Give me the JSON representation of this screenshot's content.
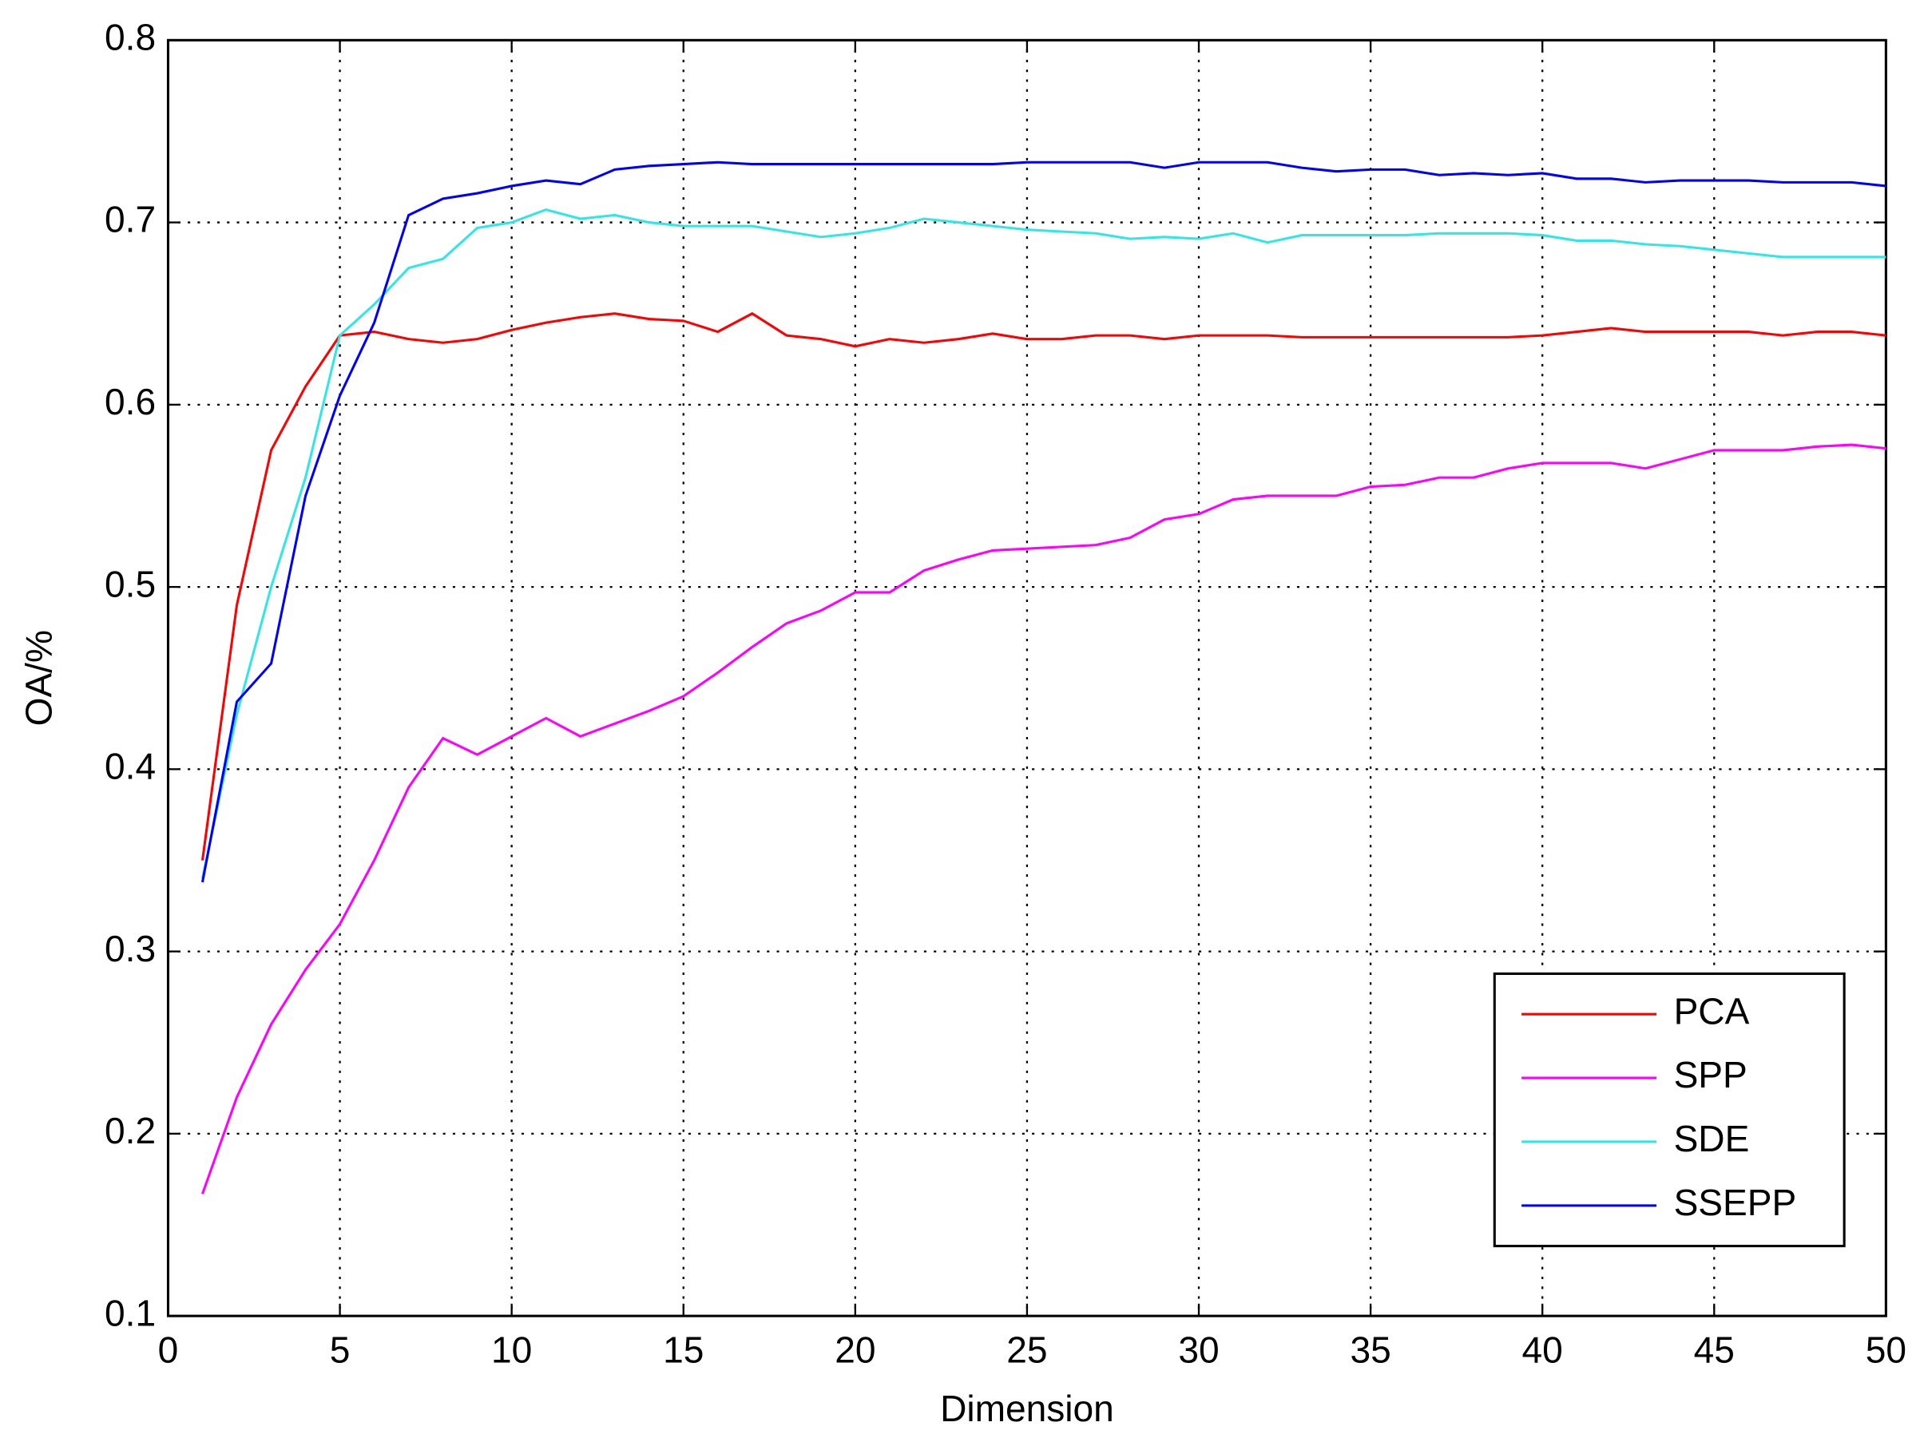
{
  "chart_data": {
    "type": "line",
    "x_label": "Dimension",
    "y_label": "OA/%",
    "x": [
      1,
      2,
      3,
      4,
      5,
      6,
      7,
      8,
      9,
      10,
      11,
      12,
      13,
      14,
      15,
      16,
      17,
      18,
      19,
      20,
      21,
      22,
      23,
      24,
      25,
      26,
      27,
      28,
      29,
      30,
      31,
      32,
      33,
      34,
      35,
      36,
      37,
      38,
      39,
      40,
      41,
      42,
      43,
      44,
      45,
      46,
      47,
      48,
      49,
      50
    ],
    "series": [
      {
        "name": "PCA",
        "color": "#ff0000",
        "values": [
          0.35,
          0.49,
          0.575,
          0.61,
          0.638,
          0.64,
          0.636,
          0.634,
          0.636,
          0.641,
          0.645,
          0.648,
          0.65,
          0.647,
          0.646,
          0.64,
          0.65,
          0.638,
          0.636,
          0.632,
          0.636,
          0.634,
          0.636,
          0.639,
          0.636,
          0.636,
          0.638,
          0.638,
          0.636,
          0.638,
          0.638,
          0.638,
          0.637,
          0.637,
          0.637,
          0.637,
          0.637,
          0.637,
          0.637,
          0.638,
          0.64,
          0.642,
          0.64,
          0.64,
          0.64,
          0.64,
          0.638,
          0.64,
          0.64,
          0.638
        ]
      },
      {
        "name": "SPP",
        "color": "#ff00ff",
        "values": [
          0.167,
          0.22,
          0.26,
          0.29,
          0.315,
          0.35,
          0.39,
          0.417,
          0.408,
          0.418,
          0.428,
          0.418,
          0.425,
          0.432,
          0.44,
          0.453,
          0.467,
          0.48,
          0.487,
          0.497,
          0.497,
          0.509,
          0.515,
          0.52,
          0.521,
          0.522,
          0.523,
          0.527,
          0.537,
          0.54,
          0.548,
          0.55,
          0.55,
          0.55,
          0.555,
          0.556,
          0.56,
          0.56,
          0.565,
          0.568,
          0.568,
          0.568,
          0.565,
          0.57,
          0.575,
          0.575,
          0.575,
          0.577,
          0.578,
          0.576
        ]
      },
      {
        "name": "SDE",
        "color": "#33e6e6",
        "values": [
          0.34,
          0.43,
          0.5,
          0.56,
          0.638,
          0.655,
          0.675,
          0.68,
          0.697,
          0.7,
          0.707,
          0.702,
          0.704,
          0.7,
          0.698,
          0.698,
          0.698,
          0.695,
          0.692,
          0.694,
          0.697,
          0.702,
          0.7,
          0.698,
          0.696,
          0.695,
          0.694,
          0.691,
          0.692,
          0.691,
          0.694,
          0.689,
          0.693,
          0.693,
          0.693,
          0.693,
          0.694,
          0.694,
          0.694,
          0.693,
          0.69,
          0.69,
          0.688,
          0.687,
          0.685,
          0.683,
          0.681,
          0.681,
          0.681,
          0.681
        ]
      },
      {
        "name": "SSEPP",
        "color": "#0000ff",
        "values": [
          0.338,
          0.437,
          0.458,
          0.55,
          0.605,
          0.645,
          0.704,
          0.713,
          0.716,
          0.72,
          0.723,
          0.721,
          0.729,
          0.731,
          0.732,
          0.733,
          0.732,
          0.732,
          0.732,
          0.732,
          0.732,
          0.732,
          0.732,
          0.732,
          0.733,
          0.733,
          0.733,
          0.733,
          0.73,
          0.733,
          0.733,
          0.733,
          0.73,
          0.728,
          0.729,
          0.729,
          0.726,
          0.727,
          0.726,
          0.727,
          0.724,
          0.724,
          0.722,
          0.723,
          0.723,
          0.723,
          0.722,
          0.722,
          0.722,
          0.72
        ]
      }
    ],
    "xlim": [
      0,
      50
    ],
    "ylim": [
      0.1,
      0.8
    ],
    "xticks": [
      0,
      5,
      10,
      15,
      20,
      25,
      30,
      35,
      40,
      45,
      50
    ],
    "yticks": [
      0.1,
      0.2,
      0.3,
      0.4,
      0.5,
      0.6,
      0.7,
      0.8
    ],
    "grid": true,
    "legend": "lower right"
  }
}
